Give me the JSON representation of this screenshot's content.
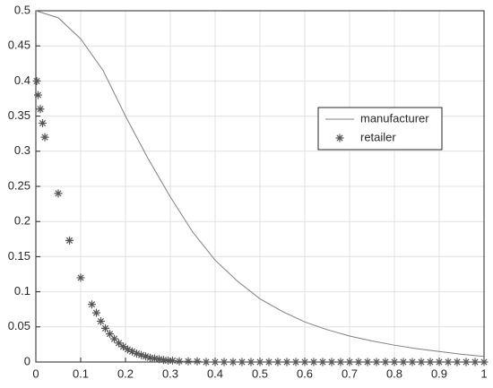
{
  "chart_data": {
    "type": "line-scatter",
    "xlim": [
      0,
      1
    ],
    "ylim": [
      0,
      0.5
    ],
    "xticks": [
      0,
      0.1,
      0.2,
      0.3,
      0.4,
      0.5,
      0.6,
      0.7,
      0.8,
      0.9,
      1
    ],
    "yticks": [
      0,
      0.05,
      0.1,
      0.15,
      0.2,
      0.25,
      0.3,
      0.35,
      0.4,
      0.45,
      0.5
    ],
    "grid": true,
    "legend": "right",
    "series": [
      {
        "name": "manufacturer",
        "kind": "line",
        "color": "#808080",
        "x": [
          0,
          0.05,
          0.1,
          0.15,
          0.2,
          0.25,
          0.3,
          0.35,
          0.4,
          0.45,
          0.5,
          0.55,
          0.6,
          0.65,
          0.7,
          0.75,
          0.8,
          0.85,
          0.9,
          0.95,
          1
        ],
        "values": [
          0.5,
          0.49,
          0.46,
          0.415,
          0.35,
          0.29,
          0.235,
          0.185,
          0.145,
          0.115,
          0.09,
          0.072,
          0.057,
          0.046,
          0.037,
          0.03,
          0.024,
          0.019,
          0.015,
          0.011,
          0.008
        ]
      },
      {
        "name": "retailer",
        "kind": "scatter",
        "color": "#555555",
        "x": [
          0.002,
          0.005,
          0.01,
          0.015,
          0.02,
          0.05,
          0.075,
          0.1,
          0.125,
          0.135,
          0.145,
          0.155,
          0.165,
          0.175,
          0.185,
          0.195,
          0.205,
          0.215,
          0.225,
          0.235,
          0.245,
          0.255,
          0.265,
          0.275,
          0.285,
          0.295,
          0.305,
          0.32,
          0.34,
          0.36,
          0.38,
          0.4,
          0.42,
          0.44,
          0.46,
          0.48,
          0.5,
          0.52,
          0.54,
          0.56,
          0.58,
          0.6,
          0.62,
          0.64,
          0.66,
          0.68,
          0.7,
          0.72,
          0.74,
          0.76,
          0.78,
          0.8,
          0.82,
          0.84,
          0.86,
          0.88,
          0.9,
          0.92,
          0.94,
          0.96,
          0.98,
          1
        ],
        "values": [
          0.4,
          0.38,
          0.36,
          0.34,
          0.32,
          0.24,
          0.173,
          0.12,
          0.082,
          0.07,
          0.058,
          0.048,
          0.04,
          0.033,
          0.027,
          0.022,
          0.018,
          0.015,
          0.012,
          0.01,
          0.008,
          0.006,
          0.005,
          0.004,
          0.003,
          0.002,
          0.002,
          0.001,
          0.001,
          0.001,
          0,
          0,
          0,
          0,
          0,
          0,
          0,
          0,
          0,
          0,
          0,
          0,
          0,
          0,
          0,
          0,
          0,
          0,
          0,
          0,
          0,
          0,
          0,
          0,
          0,
          0,
          0,
          0,
          0,
          0,
          0,
          0
        ]
      }
    ]
  }
}
